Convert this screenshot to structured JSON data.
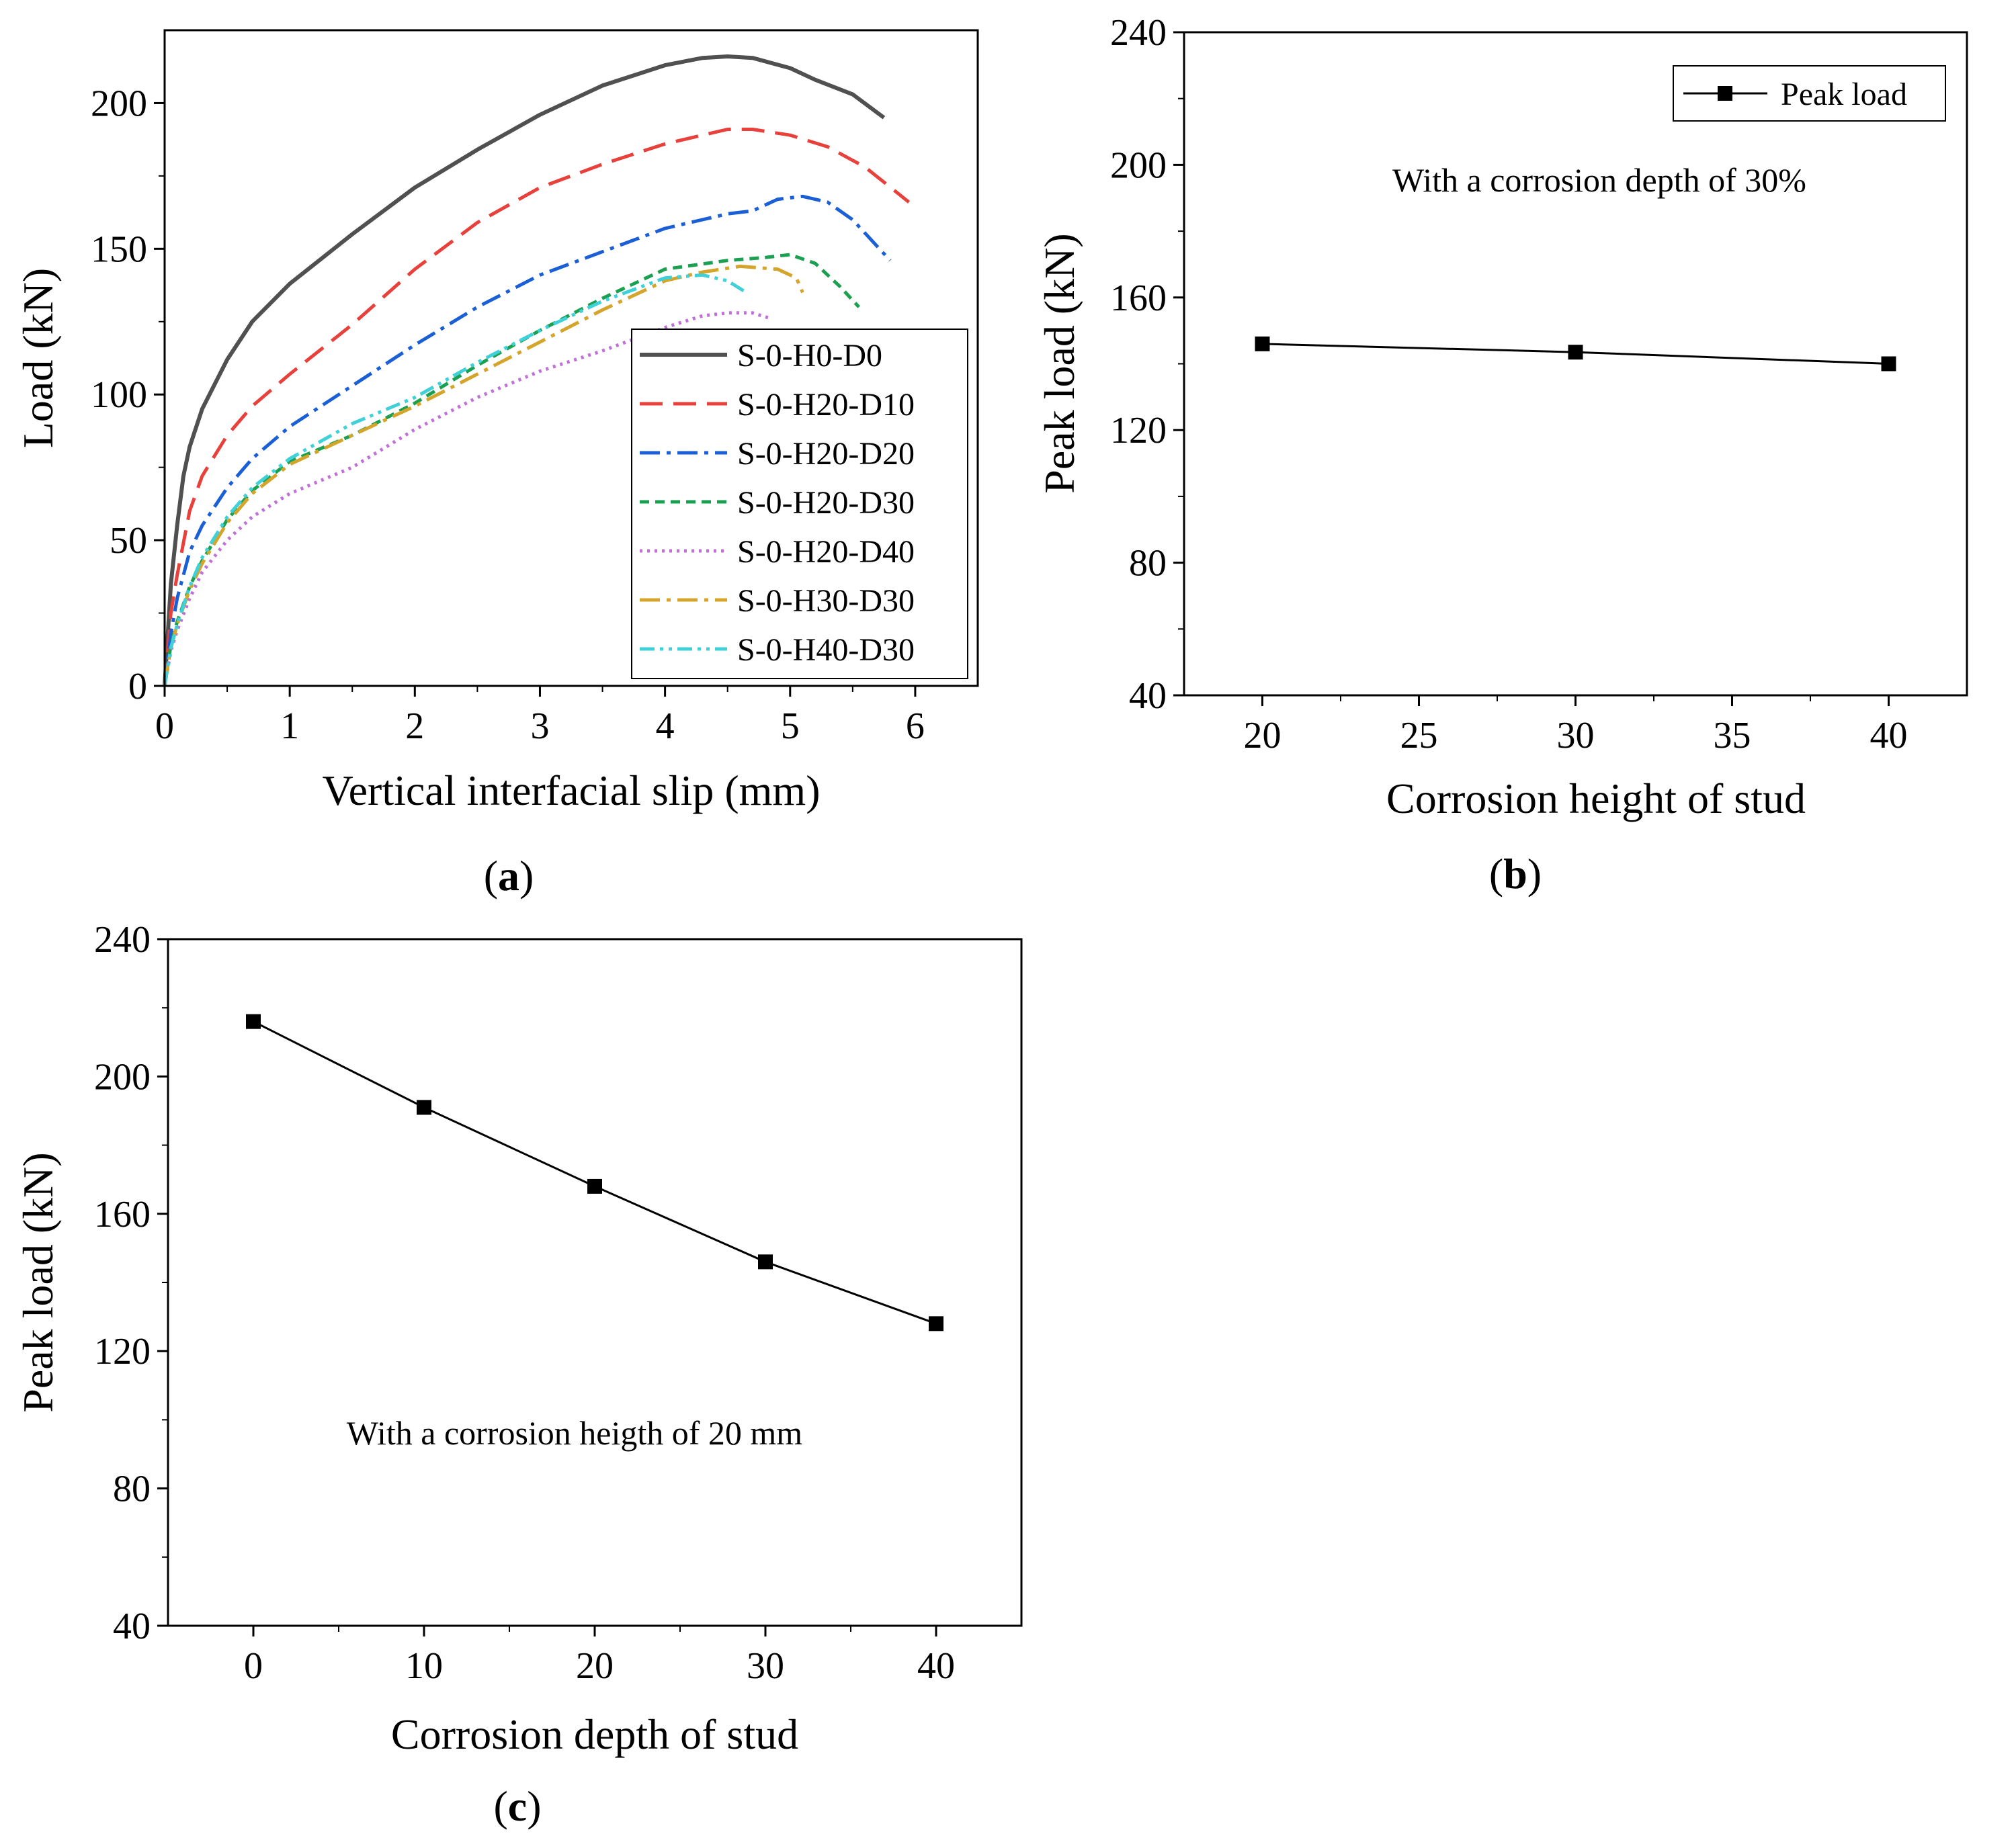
{
  "chart_data": [
    {
      "panel": "(a)",
      "panel_letter": "a",
      "type": "line",
      "title": "",
      "xlabel": "Vertical interfacial slip (mm)",
      "ylabel": "Load (kN)",
      "xlim": [
        0,
        6.5
      ],
      "ylim": [
        0,
        225
      ],
      "xticks": [
        0,
        1,
        2,
        3,
        4,
        5,
        6
      ],
      "yticks": [
        0,
        50,
        100,
        150,
        200
      ],
      "legend_position": "bottom-right",
      "series": [
        {
          "name": "S-0-H0-D0",
          "color": "#505050",
          "dash": "solid",
          "x": [
            0,
            0.05,
            0.1,
            0.15,
            0.2,
            0.3,
            0.5,
            0.7,
            1.0,
            1.5,
            2.0,
            2.5,
            3.0,
            3.5,
            4.0,
            4.3,
            4.5,
            4.7,
            5.0,
            5.2,
            5.5,
            5.75
          ],
          "y": [
            0,
            35,
            55,
            72,
            82,
            95,
            112,
            125,
            138,
            155,
            171,
            184,
            196,
            206,
            213,
            215.5,
            216,
            215.5,
            212,
            208,
            203,
            195
          ]
        },
        {
          "name": "S-0-H20-D10",
          "color": "#e8403a",
          "dash": "long-dash",
          "x": [
            0,
            0.05,
            0.1,
            0.2,
            0.3,
            0.5,
            0.7,
            1.0,
            1.5,
            2.0,
            2.5,
            3.0,
            3.5,
            4.0,
            4.3,
            4.5,
            4.7,
            5.0,
            5.3,
            5.6,
            5.95
          ],
          "y": [
            0,
            25,
            38,
            60,
            72,
            86,
            96,
            107,
            124,
            143,
            159,
            171,
            179,
            186,
            189,
            191,
            191,
            189,
            185,
            178,
            166
          ]
        },
        {
          "name": "S-0-H20-D20",
          "color": "#1a5fd6",
          "dash": "dash-dot",
          "x": [
            0,
            0.05,
            0.1,
            0.2,
            0.3,
            0.5,
            0.7,
            1.0,
            1.5,
            2.0,
            2.5,
            3.0,
            3.5,
            4.0,
            4.5,
            4.7,
            4.9,
            5.1,
            5.3,
            5.5,
            5.8
          ],
          "y": [
            0,
            18,
            30,
            46,
            55,
            68,
            78,
            89,
            103,
            117,
            130,
            141,
            149,
            157,
            162,
            163,
            167,
            168,
            166,
            160,
            146
          ]
        },
        {
          "name": "S-0-H20-D30",
          "color": "#1aa050",
          "dash": "short-dash",
          "x": [
            0,
            0.05,
            0.1,
            0.2,
            0.3,
            0.5,
            0.7,
            1.0,
            1.5,
            2.0,
            2.5,
            3.0,
            3.5,
            4.0,
            4.5,
            4.8,
            5.0,
            5.2,
            5.4,
            5.55
          ],
          "y": [
            0,
            14,
            22,
            34,
            43,
            57,
            67,
            77,
            86,
            97,
            110,
            122,
            133,
            143,
            146,
            147,
            148,
            145,
            137,
            130
          ]
        },
        {
          "name": "S-0-H20-D40",
          "color": "#c070d8",
          "dash": "dot",
          "x": [
            0,
            0.05,
            0.1,
            0.2,
            0.3,
            0.5,
            0.7,
            1.0,
            1.5,
            2.0,
            2.5,
            3.0,
            3.5,
            4.0,
            4.3,
            4.5,
            4.7,
            4.85
          ],
          "y": [
            0,
            12,
            19,
            30,
            39,
            50,
            58,
            66,
            75,
            88,
            99,
            108,
            115,
            123,
            127,
            128,
            128,
            126
          ]
        },
        {
          "name": "S-0-H30-D30",
          "color": "#d4a52a",
          "dash": "dash-dot",
          "x": [
            0,
            0.05,
            0.1,
            0.2,
            0.3,
            0.5,
            0.7,
            1.0,
            1.5,
            2.0,
            2.5,
            3.0,
            3.5,
            4.0,
            4.3,
            4.6,
            4.9,
            5.05,
            5.1
          ],
          "y": [
            0,
            13,
            21,
            33,
            42,
            56,
            66,
            76,
            86,
            96,
            107,
            118,
            129,
            139,
            142,
            144,
            143,
            140,
            135
          ]
        },
        {
          "name": "S-0-H40-D30",
          "color": "#40d0d8",
          "dash": "dash-dot-dot",
          "x": [
            0,
            0.05,
            0.1,
            0.2,
            0.3,
            0.5,
            0.7,
            1.0,
            1.5,
            2.0,
            2.5,
            3.0,
            3.5,
            4.0,
            4.3,
            4.5,
            4.65
          ],
          "y": [
            0,
            13,
            21,
            34,
            44,
            58,
            68,
            78,
            90,
            99,
            111,
            122,
            132,
            140,
            141,
            139,
            135
          ]
        }
      ]
    },
    {
      "panel": "(b)",
      "panel_letter": "b",
      "type": "line",
      "title": "",
      "xlabel": "Corrosion height of  stud",
      "ylabel": "Peak load (kN)",
      "xlim": [
        17.5,
        42.5
      ],
      "ylim": [
        40,
        240
      ],
      "xticks": [
        20,
        25,
        30,
        35,
        40
      ],
      "yticks": [
        40,
        80,
        120,
        160,
        200,
        240
      ],
      "annotation": "With a corrosion depth of 30%",
      "legend_position": "top-right",
      "series": [
        {
          "name": "Peak load",
          "color": "#000000",
          "marker": "square",
          "x": [
            20,
            30,
            40
          ],
          "y": [
            146,
            143.5,
            140
          ]
        }
      ]
    },
    {
      "panel": "(c)",
      "panel_letter": "c",
      "type": "line",
      "title": "",
      "xlabel": "Corrosion depth of  stud",
      "ylabel": "Peak load (kN)",
      "xlim": [
        -5,
        45
      ],
      "ylim": [
        40,
        240
      ],
      "xticks": [
        0,
        10,
        20,
        30,
        40
      ],
      "yticks": [
        40,
        80,
        120,
        160,
        200,
        240
      ],
      "annotation": "With a corrosion heigth of 20 mm",
      "series": [
        {
          "name": "Peak load",
          "color": "#000000",
          "marker": "square",
          "x": [
            0,
            10,
            20,
            30,
            40
          ],
          "y": [
            216,
            191,
            168,
            146,
            128
          ]
        }
      ]
    }
  ]
}
